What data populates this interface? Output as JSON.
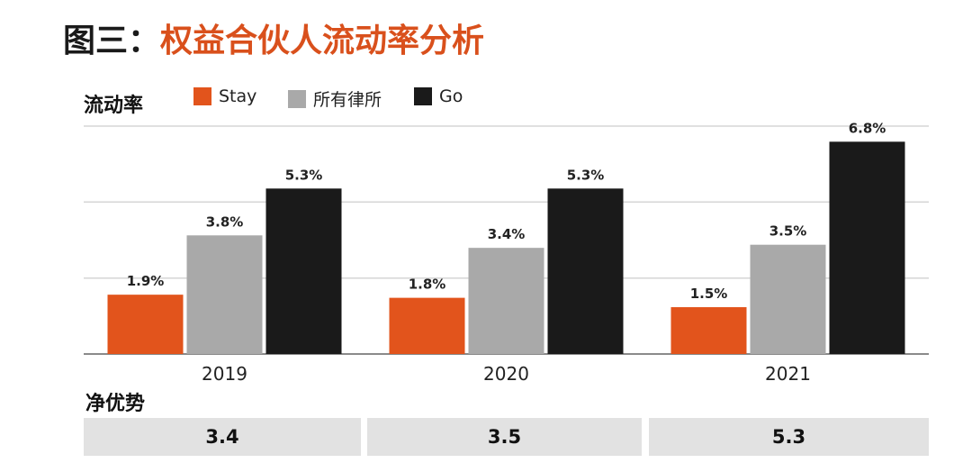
{
  "title": {
    "prefix": "图三：",
    "main": "权益合伙人流动率分析"
  },
  "chart_data": {
    "type": "bar",
    "ylabel": "流动率",
    "categories": [
      "2019",
      "2020",
      "2021"
    ],
    "series": [
      {
        "name": "Stay",
        "color": "#e2541c",
        "values": [
          1.9,
          1.8,
          1.5
        ],
        "labels": [
          "1.9%",
          "1.8%",
          "1.5%"
        ]
      },
      {
        "name": "所有律所",
        "color": "#a9a9a9",
        "values": [
          3.8,
          3.4,
          3.5
        ],
        "labels": [
          "3.8%",
          "3.4%",
          "3.5%"
        ]
      },
      {
        "name": "Go",
        "color": "#1a1a1a",
        "values": [
          5.3,
          5.3,
          6.8
        ],
        "labels": [
          "5.3%",
          "5.3%",
          "6.8%"
        ]
      }
    ],
    "ylim": [
      0,
      7.3
    ],
    "grid": true,
    "legend_position": "top"
  },
  "net_advantage": {
    "label": "净优势",
    "values": [
      "3.4",
      "3.5",
      "5.3"
    ]
  }
}
